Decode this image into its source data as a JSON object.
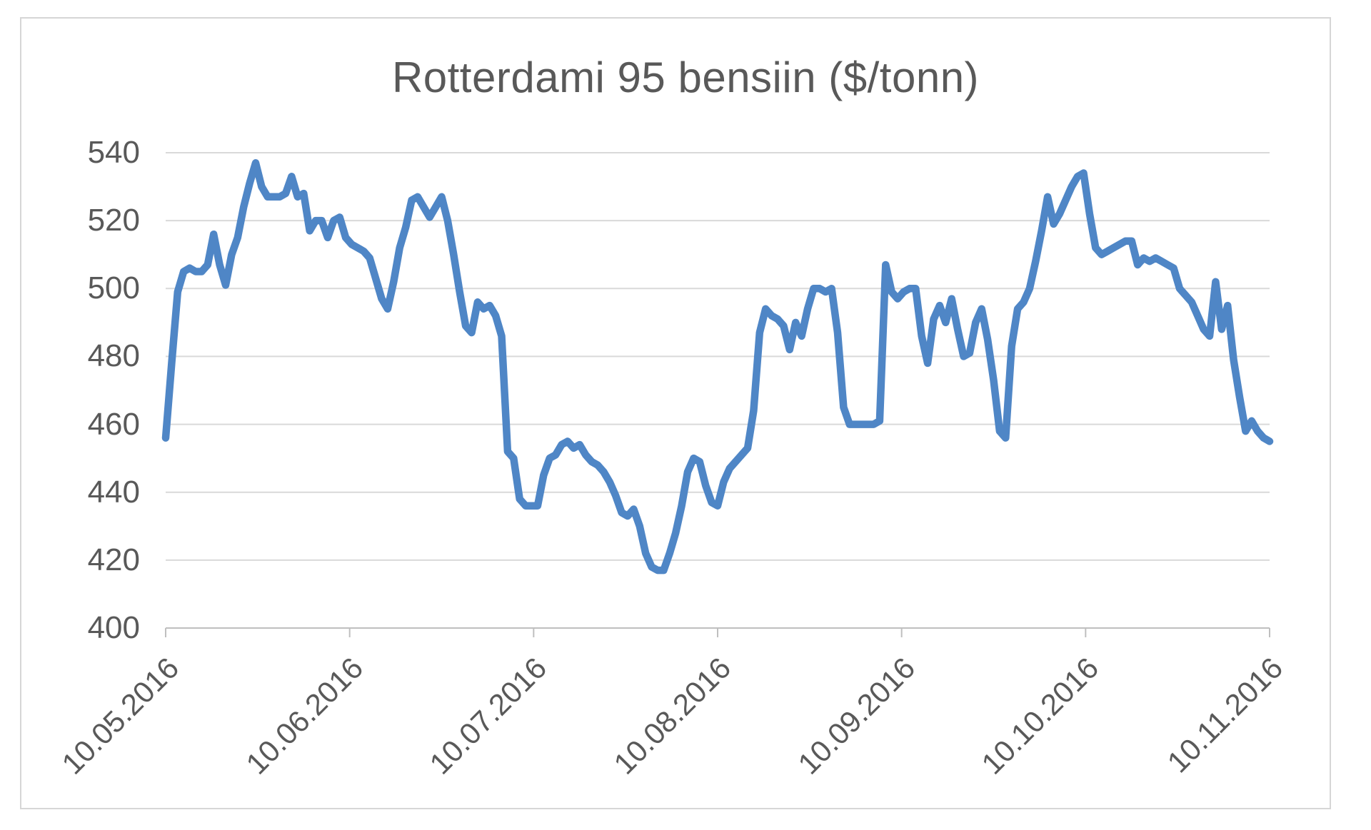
{
  "chart_data": {
    "type": "line",
    "title": "Rotterdami 95 bensiin ($/tonn)",
    "x_tick_labels": [
      "10.05.2016",
      "10.06.2016",
      "10.07.2016",
      "10.08.2016",
      "10.09.2016",
      "10.10.2016",
      "10.11.2016"
    ],
    "y_ticks": [
      540,
      520,
      500,
      480,
      460,
      440,
      420,
      400
    ],
    "ylim": [
      400,
      540
    ],
    "xlabel": "",
    "ylabel": "",
    "grid": "horizontal",
    "legend": "none",
    "series": [
      {
        "name": "Rotterdami 95 bensiin ($/tonn)",
        "color": "#4f86c6",
        "values": [
          456,
          478,
          499,
          505,
          506,
          505,
          505,
          507,
          516,
          507,
          501,
          510,
          515,
          524,
          531,
          537,
          530,
          527,
          527,
          527,
          528,
          533,
          527,
          528,
          517,
          520,
          520,
          515,
          520,
          521,
          515,
          513,
          512,
          511,
          509,
          503,
          497,
          494,
          502,
          512,
          518,
          526,
          527,
          524,
          521,
          524,
          527,
          520,
          510,
          499,
          489,
          487,
          496,
          494,
          495,
          492,
          486,
          452,
          450,
          438,
          436,
          436,
          436,
          445,
          450,
          451,
          454,
          455,
          453,
          454,
          451,
          449,
          448,
          446,
          443,
          439,
          434,
          433,
          435,
          430,
          422,
          418,
          417,
          417,
          422,
          428,
          436,
          446,
          450,
          449,
          442,
          437,
          436,
          443,
          447,
          449,
          451,
          453,
          464,
          487,
          494,
          492,
          491,
          489,
          482,
          490,
          486,
          494,
          500,
          500,
          499,
          500,
          487,
          465,
          460,
          460,
          460,
          460,
          460,
          461,
          507,
          499,
          497,
          499,
          500,
          500,
          486,
          478,
          491,
          495,
          490,
          497,
          488,
          480,
          481,
          490,
          494,
          485,
          473,
          458,
          456,
          483,
          494,
          496,
          500,
          508,
          517,
          527,
          519,
          522,
          526,
          530,
          533,
          534,
          522,
          512,
          510,
          511,
          512,
          513,
          514,
          514,
          507,
          509,
          508,
          509,
          508,
          507,
          506,
          500,
          498,
          496,
          492,
          488,
          486,
          502,
          488,
          495,
          479,
          468,
          458,
          461,
          458,
          456,
          455
        ]
      }
    ]
  },
  "colors": {
    "line": "#4f86c6",
    "gridline": "#d9d9d9",
    "axis_line": "#bfbfbf",
    "text": "#595959",
    "frame_border": "#d6d6d6",
    "background": "#ffffff"
  }
}
